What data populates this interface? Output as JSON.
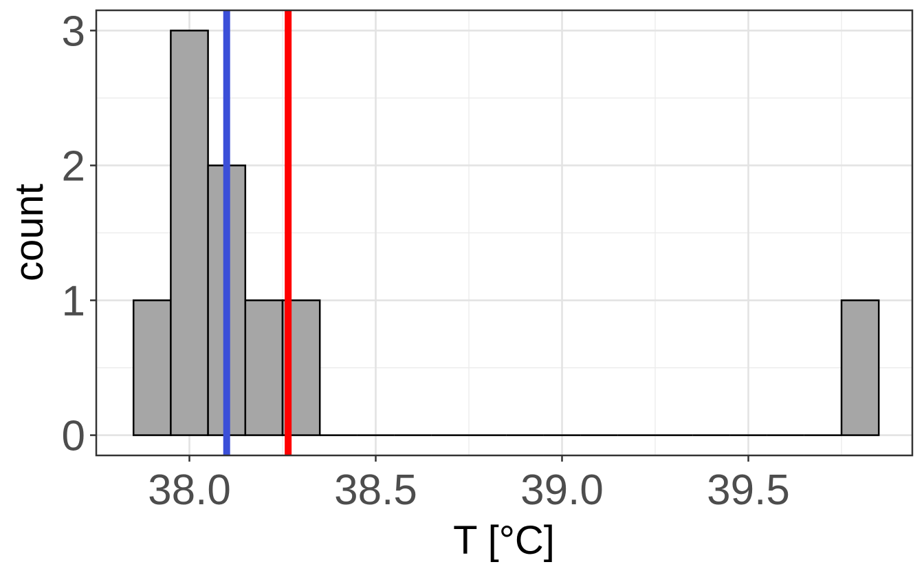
{
  "chart_data": {
    "type": "histogram",
    "title": "",
    "xlabel": "T [°C]",
    "ylabel": "count",
    "xlim": [
      37.75,
      39.94
    ],
    "ylim": [
      -0.15,
      3.15
    ],
    "x_ticks": [
      38.0,
      38.5,
      39.0,
      39.5
    ],
    "x_tick_labels": [
      "38.0",
      "38.5",
      "39.0",
      "39.5"
    ],
    "y_ticks": [
      0,
      1,
      2,
      3
    ],
    "y_tick_labels": [
      "0",
      "1",
      "2",
      "3"
    ],
    "bin_width": 0.1,
    "bins": [
      {
        "x0": 37.85,
        "x1": 37.95,
        "count": 1
      },
      {
        "x0": 37.95,
        "x1": 38.05,
        "count": 3
      },
      {
        "x0": 38.05,
        "x1": 38.15,
        "count": 2
      },
      {
        "x0": 38.15,
        "x1": 38.25,
        "count": 1
      },
      {
        "x0": 38.25,
        "x1": 38.35,
        "count": 1
      },
      {
        "x0": 38.35,
        "x1": 38.45,
        "count": 0
      },
      {
        "x0": 38.45,
        "x1": 38.55,
        "count": 0
      },
      {
        "x0": 38.55,
        "x1": 38.65,
        "count": 0
      },
      {
        "x0": 38.65,
        "x1": 38.75,
        "count": 0
      },
      {
        "x0": 38.75,
        "x1": 38.85,
        "count": 0
      },
      {
        "x0": 38.85,
        "x1": 38.95,
        "count": 0
      },
      {
        "x0": 38.95,
        "x1": 39.05,
        "count": 0
      },
      {
        "x0": 39.05,
        "x1": 39.15,
        "count": 0
      },
      {
        "x0": 39.15,
        "x1": 39.25,
        "count": 0
      },
      {
        "x0": 39.25,
        "x1": 39.35,
        "count": 0
      },
      {
        "x0": 39.35,
        "x1": 39.45,
        "count": 0
      },
      {
        "x0": 39.45,
        "x1": 39.55,
        "count": 0
      },
      {
        "x0": 39.55,
        "x1": 39.65,
        "count": 0
      },
      {
        "x0": 39.65,
        "x1": 39.75,
        "count": 0
      },
      {
        "x0": 39.75,
        "x1": 39.85,
        "count": 1
      }
    ],
    "vertical_lines": [
      {
        "x": 38.1,
        "color": "#3b4fd8"
      },
      {
        "x": 38.265,
        "color": "#ff0000"
      }
    ],
    "bar_fill": "#a6a6a6",
    "bar_stroke": "#000000",
    "grid": true,
    "legend": "none"
  }
}
